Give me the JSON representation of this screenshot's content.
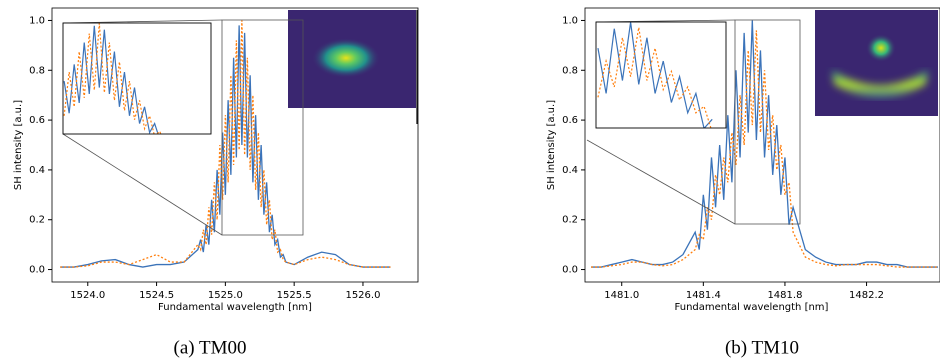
{
  "chart_data": [
    {
      "type": "line",
      "caption": "(a) TM00",
      "xlabel": "Fundamental wavelength [nm]",
      "ylabel": "SH intensity [a.u.]",
      "xlim": [
        1523.74,
        1526.4
      ],
      "ylim": [
        -0.05,
        1.05
      ],
      "xticks": [
        {
          "value": 1524.0,
          "label": "1524.0"
        },
        1524.5,
        {
          "value": 1525.0,
          "label": "1525.0"
        },
        1525.5,
        {
          "value": 1526.0,
          "label": "1526.0"
        }
      ],
      "yticks": [
        {
          "value": 0,
          "label": "0.0"
        },
        0.2,
        0.4,
        0.6,
        0.8,
        {
          "value": 1,
          "label": "1.0"
        }
      ],
      "x": [
        1523.8,
        1523.9,
        1524.0,
        1524.1,
        1524.2,
        1524.3,
        1524.4,
        1524.5,
        1524.6,
        1524.7,
        1524.8,
        1524.82,
        1524.84,
        1524.86,
        1524.88,
        1524.9,
        1524.92,
        1524.94,
        1524.96,
        1524.98,
        1525.0,
        1525.02,
        1525.04,
        1525.06,
        1525.08,
        1525.1,
        1525.12,
        1525.14,
        1525.16,
        1525.18,
        1525.2,
        1525.22,
        1525.24,
        1525.26,
        1525.28,
        1525.3,
        1525.32,
        1525.34,
        1525.36,
        1525.38,
        1525.4,
        1525.42,
        1525.44,
        1525.5,
        1525.6,
        1525.7,
        1525.8,
        1525.9,
        1526.0,
        1526.1,
        1526.2
      ],
      "series": [
        {
          "color": "#3b73b9",
          "dash": "solid",
          "values": [
            0.01,
            0.01,
            0.02,
            0.035,
            0.04,
            0.02,
            0.01,
            0.02,
            0.02,
            0.03,
            0.08,
            0.12,
            0.07,
            0.18,
            0.1,
            0.28,
            0.15,
            0.4,
            0.22,
            0.55,
            0.3,
            0.68,
            0.38,
            0.85,
            0.45,
            0.98,
            0.5,
            0.95,
            0.45,
            0.78,
            0.35,
            0.62,
            0.28,
            0.5,
            0.22,
            0.35,
            0.15,
            0.22,
            0.1,
            0.12,
            0.05,
            0.06,
            0.03,
            0.02,
            0.05,
            0.07,
            0.06,
            0.02,
            0.01,
            0.01,
            0.01
          ]
        },
        {
          "color": "#ff7f0e",
          "dash": "dotted",
          "values": [
            0.01,
            0.01,
            0.015,
            0.03,
            0.03,
            0.02,
            0.04,
            0.06,
            0.03,
            0.03,
            0.1,
            0.08,
            0.16,
            0.1,
            0.25,
            0.14,
            0.35,
            0.2,
            0.5,
            0.28,
            0.62,
            0.35,
            0.78,
            0.42,
            0.92,
            0.48,
            1.0,
            0.46,
            0.85,
            0.4,
            0.7,
            0.32,
            0.55,
            0.25,
            0.4,
            0.18,
            0.28,
            0.12,
            0.16,
            0.07,
            0.08,
            0.04,
            0.03,
            0.02,
            0.04,
            0.05,
            0.04,
            0.02,
            0.01,
            0.01,
            0.01
          ]
        }
      ]
    },
    {
      "type": "line",
      "caption": "(b) TM10",
      "xlabel": "Fundamental wavelength [nm]",
      "ylabel": "SH intensity [a.u.]",
      "xlim": [
        1480.82,
        1482.56
      ],
      "ylim": [
        -0.05,
        1.05
      ],
      "xticks": [
        {
          "value": 1481.0,
          "label": "1481.0"
        },
        1481.4,
        1481.8,
        1482.2
      ],
      "yticks": [
        {
          "value": 0,
          "label": "0.0"
        },
        0.2,
        0.4,
        0.6,
        0.8,
        {
          "value": 1,
          "label": "1.0"
        }
      ],
      "x": [
        1480.85,
        1480.9,
        1480.95,
        1481.0,
        1481.05,
        1481.1,
        1481.15,
        1481.2,
        1481.25,
        1481.3,
        1481.36,
        1481.38,
        1481.4,
        1481.42,
        1481.44,
        1481.46,
        1481.48,
        1481.5,
        1481.52,
        1481.54,
        1481.56,
        1481.58,
        1481.6,
        1481.62,
        1481.64,
        1481.66,
        1481.68,
        1481.7,
        1481.72,
        1481.74,
        1481.76,
        1481.78,
        1481.8,
        1481.82,
        1481.84,
        1481.9,
        1481.95,
        1482.0,
        1482.05,
        1482.1,
        1482.15,
        1482.2,
        1482.25,
        1482.3,
        1482.35,
        1482.4,
        1482.45,
        1482.5,
        1482.55
      ],
      "series": [
        {
          "color": "#3b73b9",
          "dash": "solid",
          "values": [
            0.01,
            0.01,
            0.02,
            0.03,
            0.04,
            0.03,
            0.02,
            0.02,
            0.03,
            0.06,
            0.15,
            0.08,
            0.3,
            0.16,
            0.45,
            0.25,
            0.5,
            0.28,
            0.62,
            0.35,
            0.8,
            0.45,
            0.95,
            0.55,
            1.0,
            0.52,
            0.88,
            0.45,
            0.7,
            0.38,
            0.58,
            0.3,
            0.45,
            0.18,
            0.25,
            0.08,
            0.05,
            0.03,
            0.02,
            0.02,
            0.02,
            0.03,
            0.03,
            0.02,
            0.02,
            0.01,
            0.01,
            0.01,
            0.01
          ]
        },
        {
          "color": "#ff7f0e",
          "dash": "dotted",
          "values": [
            0.01,
            0.01,
            0.015,
            0.02,
            0.03,
            0.03,
            0.02,
            0.015,
            0.02,
            0.04,
            0.08,
            0.14,
            0.12,
            0.25,
            0.2,
            0.38,
            0.3,
            0.45,
            0.35,
            0.55,
            0.42,
            0.7,
            0.5,
            0.88,
            0.58,
            0.96,
            0.55,
            0.8,
            0.48,
            0.62,
            0.4,
            0.5,
            0.3,
            0.35,
            0.15,
            0.05,
            0.03,
            0.02,
            0.015,
            0.02,
            0.02,
            0.02,
            0.02,
            0.015,
            0.01,
            0.01,
            0.01,
            0.01,
            0.01
          ]
        }
      ]
    }
  ]
}
